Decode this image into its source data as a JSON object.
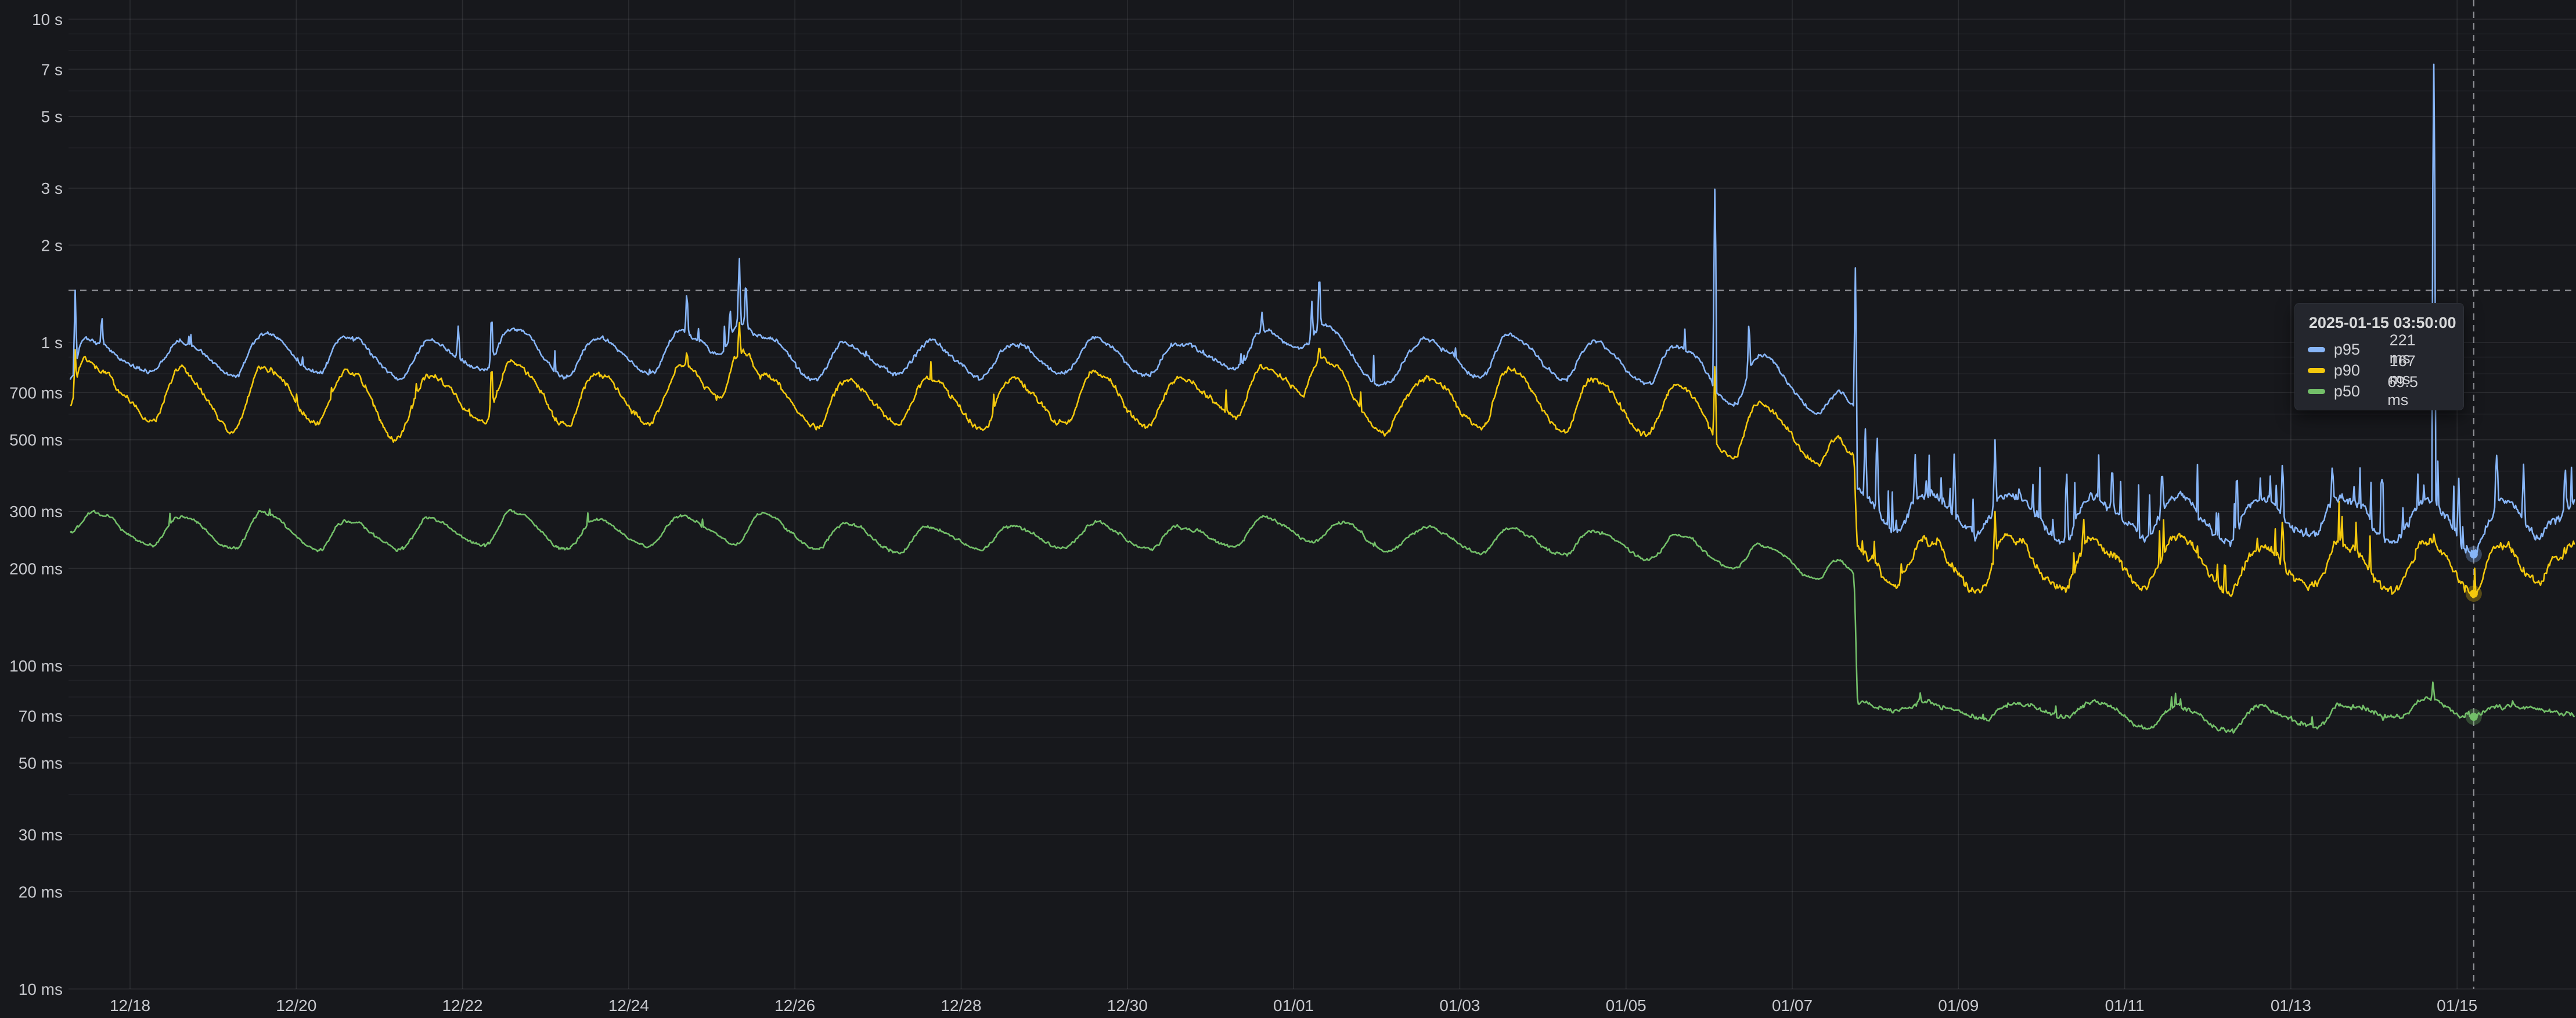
{
  "page": {
    "background": "#17181c"
  },
  "colors": {
    "p95_blue": "#87B5F7",
    "p90_yellow": "#F3C80D",
    "p50_green": "#73BF69",
    "grid_major": "rgba(205,207,220,0.11)",
    "grid_minor": "rgba(205,207,220,0.055)",
    "axis_text": "#C8C9CE",
    "crosshair": "#8F9096",
    "tooltip_bg": "#24262D"
  },
  "tooltip": {
    "title": "2025-01-15 03:50:00",
    "rows": [
      {
        "label": "p95",
        "value": "221 ms",
        "color": "#87B5F7"
      },
      {
        "label": "p90",
        "value": "167 ms",
        "color": "#F3C80D"
      },
      {
        "label": "p50",
        "value": "69.5 ms",
        "color": "#73BF69"
      }
    ]
  },
  "hover": {
    "day": 28.2,
    "cursor_ms": 1450,
    "points_ms": {
      "p95": 221,
      "p90": 167,
      "p50": 69.5
    }
  },
  "chart_data": {
    "type": "line",
    "title": "",
    "xlabel": "",
    "ylabel": "",
    "y_scale": "log10",
    "unit": "ms",
    "grid": true,
    "legend_position": "tooltip-only",
    "time_range_days": [
      -0.72,
      29.42
    ],
    "step_change_day": 20.76,
    "x_axis": {
      "tick_days": [
        0,
        2,
        4,
        6,
        8,
        10,
        12,
        14,
        16,
        18,
        20,
        22,
        24,
        26,
        28
      ],
      "tick_labels": [
        "12/18",
        "12/20",
        "12/22",
        "12/24",
        "12/26",
        "12/28",
        "12/30",
        "01/01",
        "01/03",
        "01/05",
        "01/07",
        "01/09",
        "01/11",
        "01/13",
        "01/15"
      ]
    },
    "y_axis": {
      "ticks": [
        {
          "label": "10 s",
          "ms": 10000
        },
        {
          "label": "7 s",
          "ms": 7000
        },
        {
          "label": "5 s",
          "ms": 5000
        },
        {
          "label": "3 s",
          "ms": 3000
        },
        {
          "label": "2 s",
          "ms": 2000
        },
        {
          "label": "1 s",
          "ms": 1000
        },
        {
          "label": "700 ms",
          "ms": 700
        },
        {
          "label": "500 ms",
          "ms": 500
        },
        {
          "label": "300 ms",
          "ms": 300
        },
        {
          "label": "200 ms",
          "ms": 200
        },
        {
          "label": "100 ms",
          "ms": 100
        },
        {
          "label": "70 ms",
          "ms": 70
        },
        {
          "label": "50 ms",
          "ms": 50
        },
        {
          "label": "30 ms",
          "ms": 30
        },
        {
          "label": "20 ms",
          "ms": 20
        },
        {
          "label": "10 ms",
          "ms": 10
        }
      ]
    },
    "series": [
      {
        "name": "p95",
        "color": "#87B5F7",
        "keyframes": [
          [
            -0.72,
            760
          ],
          [
            -0.55,
            1020
          ],
          [
            -0.3,
            980
          ],
          [
            -0.1,
            880
          ],
          [
            0.25,
            800
          ],
          [
            0.6,
            1010
          ],
          [
            1.25,
            790
          ],
          [
            1.6,
            1060
          ],
          [
            2.25,
            800
          ],
          [
            2.6,
            1050
          ],
          [
            3.25,
            770
          ],
          [
            3.6,
            1000
          ],
          [
            4.25,
            810
          ],
          [
            4.6,
            1110
          ],
          [
            5.25,
            790
          ],
          [
            5.6,
            1020
          ],
          [
            6.25,
            800
          ],
          [
            6.65,
            1080
          ],
          [
            7.1,
            920
          ],
          [
            7.35,
            1150
          ],
          [
            7.6,
            1050
          ],
          [
            8.25,
            770
          ],
          [
            8.6,
            990
          ],
          [
            9.25,
            790
          ],
          [
            9.6,
            1010
          ],
          [
            10.25,
            780
          ],
          [
            10.6,
            990
          ],
          [
            11.25,
            800
          ],
          [
            11.6,
            1030
          ],
          [
            12.25,
            790
          ],
          [
            12.6,
            1000
          ],
          [
            13.3,
            830
          ],
          [
            13.65,
            1090
          ],
          [
            14.1,
            950
          ],
          [
            14.35,
            1120
          ],
          [
            15.05,
            740
          ],
          [
            15.6,
            1010
          ],
          [
            16.25,
            780
          ],
          [
            16.6,
            1050
          ],
          [
            17.25,
            770
          ],
          [
            17.6,
            1000
          ],
          [
            18.25,
            750
          ],
          [
            18.6,
            980
          ],
          [
            19.3,
            650
          ],
          [
            19.6,
            900
          ],
          [
            20.3,
            610
          ],
          [
            20.55,
            700
          ],
          [
            20.73,
            640
          ],
          [
            20.79,
            340
          ],
          [
            21.25,
            265
          ],
          [
            21.6,
            335
          ],
          [
            22.25,
            255
          ],
          [
            22.6,
            345
          ],
          [
            23.25,
            245
          ],
          [
            23.6,
            330
          ],
          [
            24.25,
            255
          ],
          [
            24.6,
            335
          ],
          [
            25.25,
            245
          ],
          [
            25.6,
            325
          ],
          [
            26.25,
            255
          ],
          [
            26.6,
            335
          ],
          [
            27.25,
            245
          ],
          [
            27.65,
            330
          ],
          [
            28.18,
            222
          ],
          [
            28.55,
            325
          ],
          [
            28.95,
            250
          ],
          [
            29.25,
            290
          ],
          [
            29.42,
            315
          ]
        ],
        "spikes": [
          [
            -0.66,
            1450
          ],
          [
            -0.34,
            1240
          ],
          [
            3.95,
            1150
          ],
          [
            4.35,
            1290
          ],
          [
            6.7,
            1480
          ],
          [
            7.22,
            1300
          ],
          [
            7.33,
            1900
          ],
          [
            7.41,
            1630
          ],
          [
            13.62,
            1240
          ],
          [
            14.22,
            1340
          ],
          [
            14.31,
            1730
          ],
          [
            19.07,
            3250
          ],
          [
            19.48,
            1210
          ],
          [
            20.76,
            1700
          ],
          [
            20.88,
            540
          ],
          [
            21.02,
            560
          ],
          [
            21.48,
            450
          ],
          [
            21.95,
            470
          ],
          [
            22.44,
            500
          ],
          [
            23.3,
            430
          ],
          [
            23.85,
            440
          ],
          [
            24.45,
            420
          ],
          [
            25.35,
            430
          ],
          [
            25.9,
            450
          ],
          [
            26.5,
            430
          ],
          [
            27.1,
            410
          ],
          [
            27.72,
            7250
          ],
          [
            28.02,
            380
          ],
          [
            28.48,
            460
          ],
          [
            28.8,
            420
          ],
          [
            29.3,
            430
          ]
        ],
        "noise": {
          "pre_amp": 0.04,
          "post_amp": 0.075,
          "pre_spike_p": 0.992,
          "pre_spike_amp": 0.22,
          "post_spike_p": 0.94,
          "post_spike_amp": 0.45
        }
      },
      {
        "name": "p90",
        "color": "#F3C80D",
        "keyframes": [
          [
            -0.72,
            640
          ],
          [
            -0.55,
            880
          ],
          [
            -0.3,
            830
          ],
          [
            -0.1,
            700
          ],
          [
            0.25,
            560
          ],
          [
            0.6,
            820
          ],
          [
            1.25,
            530
          ],
          [
            1.6,
            830
          ],
          [
            2.25,
            560
          ],
          [
            2.6,
            820
          ],
          [
            3.2,
            500
          ],
          [
            3.6,
            780
          ],
          [
            4.25,
            560
          ],
          [
            4.6,
            870
          ],
          [
            5.25,
            550
          ],
          [
            5.6,
            800
          ],
          [
            6.25,
            560
          ],
          [
            6.65,
            850
          ],
          [
            7.1,
            680
          ],
          [
            7.35,
            950
          ],
          [
            7.6,
            800
          ],
          [
            8.25,
            540
          ],
          [
            8.6,
            760
          ],
          [
            9.25,
            550
          ],
          [
            9.6,
            780
          ],
          [
            10.25,
            540
          ],
          [
            10.6,
            770
          ],
          [
            11.25,
            560
          ],
          [
            11.6,
            800
          ],
          [
            12.25,
            550
          ],
          [
            12.6,
            780
          ],
          [
            13.3,
            590
          ],
          [
            13.65,
            850
          ],
          [
            14.1,
            700
          ],
          [
            14.35,
            880
          ],
          [
            15.07,
            520
          ],
          [
            15.6,
            780
          ],
          [
            16.25,
            540
          ],
          [
            16.6,
            820
          ],
          [
            17.25,
            530
          ],
          [
            17.6,
            770
          ],
          [
            18.25,
            510
          ],
          [
            18.6,
            740
          ],
          [
            19.3,
            440
          ],
          [
            19.6,
            650
          ],
          [
            20.3,
            420
          ],
          [
            20.55,
            500
          ],
          [
            20.73,
            460
          ],
          [
            20.79,
            230
          ],
          [
            21.25,
            180
          ],
          [
            21.6,
            240
          ],
          [
            22.25,
            172
          ],
          [
            22.6,
            250
          ],
          [
            23.25,
            168
          ],
          [
            23.6,
            240
          ],
          [
            24.25,
            175
          ],
          [
            24.6,
            248
          ],
          [
            25.25,
            168
          ],
          [
            25.6,
            238
          ],
          [
            26.25,
            175
          ],
          [
            26.6,
            245
          ],
          [
            27.25,
            170
          ],
          [
            27.65,
            240
          ],
          [
            28.18,
            167
          ],
          [
            28.55,
            238
          ],
          [
            28.95,
            182
          ],
          [
            29.25,
            215
          ],
          [
            29.42,
            235
          ]
        ],
        "spikes": [
          [
            -0.66,
            950
          ],
          [
            4.35,
            900
          ],
          [
            6.7,
            950
          ],
          [
            7.33,
            1180
          ],
          [
            14.31,
            990
          ],
          [
            19.07,
            880
          ],
          [
            22.44,
            300
          ],
          [
            25.9,
            295
          ],
          [
            27.72,
            255
          ]
        ],
        "noise": {
          "pre_amp": 0.05,
          "post_amp": 0.08,
          "pre_spike_p": 0.995,
          "pre_spike_amp": 0.18,
          "post_spike_p": 0.965,
          "post_spike_amp": 0.3
        }
      },
      {
        "name": "p50",
        "color": "#73BF69",
        "keyframes": [
          [
            -0.72,
            258
          ],
          [
            -0.45,
            298
          ],
          [
            0.25,
            236
          ],
          [
            0.6,
            290
          ],
          [
            1.25,
            230
          ],
          [
            1.6,
            298
          ],
          [
            2.25,
            226
          ],
          [
            2.6,
            280
          ],
          [
            3.25,
            230
          ],
          [
            3.6,
            285
          ],
          [
            4.25,
            235
          ],
          [
            4.6,
            300
          ],
          [
            5.25,
            230
          ],
          [
            5.6,
            282
          ],
          [
            6.25,
            234
          ],
          [
            6.6,
            290
          ],
          [
            7.3,
            240
          ],
          [
            7.6,
            298
          ],
          [
            8.25,
            230
          ],
          [
            8.6,
            274
          ],
          [
            9.25,
            226
          ],
          [
            9.6,
            270
          ],
          [
            10.25,
            228
          ],
          [
            10.6,
            272
          ],
          [
            11.25,
            230
          ],
          [
            11.6,
            278
          ],
          [
            12.25,
            228
          ],
          [
            12.6,
            270
          ],
          [
            13.3,
            236
          ],
          [
            13.65,
            290
          ],
          [
            14.2,
            242
          ],
          [
            14.6,
            280
          ],
          [
            15.1,
            226
          ],
          [
            15.6,
            268
          ],
          [
            16.25,
            222
          ],
          [
            16.6,
            264
          ],
          [
            17.25,
            220
          ],
          [
            17.6,
            262
          ],
          [
            18.3,
            214
          ],
          [
            18.6,
            254
          ],
          [
            19.3,
            200
          ],
          [
            19.6,
            238
          ],
          [
            20.3,
            186
          ],
          [
            20.55,
            212
          ],
          [
            20.73,
            196
          ],
          [
            20.79,
            77
          ],
          [
            21.3,
            72
          ],
          [
            21.6,
            77
          ],
          [
            22.3,
            68
          ],
          [
            22.6,
            76
          ],
          [
            23.3,
            70
          ],
          [
            23.6,
            77
          ],
          [
            24.3,
            64
          ],
          [
            24.6,
            75
          ],
          [
            25.3,
            63
          ],
          [
            25.6,
            75
          ],
          [
            26.3,
            65
          ],
          [
            26.6,
            76
          ],
          [
            27.3,
            69
          ],
          [
            27.6,
            78
          ],
          [
            28.18,
            69.5
          ],
          [
            28.6,
            75
          ],
          [
            29.0,
            73
          ],
          [
            29.42,
            70
          ]
        ],
        "spikes": [
          [
            27.71,
            90
          ]
        ],
        "noise": {
          "pre_amp": 0.028,
          "post_amp": 0.042,
          "pre_spike_p": 0.997,
          "pre_spike_amp": 0.08,
          "post_spike_p": 0.99,
          "post_spike_amp": 0.1
        }
      }
    ]
  }
}
